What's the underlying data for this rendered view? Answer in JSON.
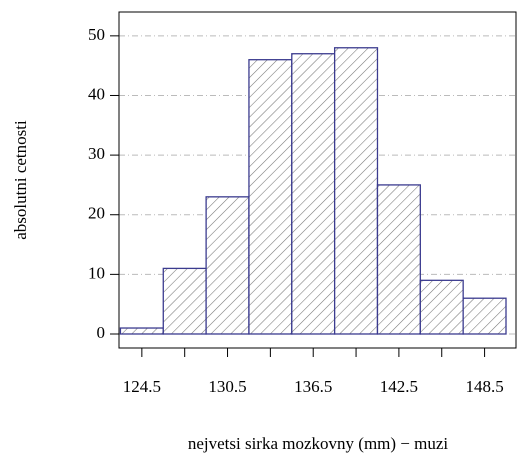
{
  "chart_data": {
    "type": "histogram",
    "xlabel": "nejvetsi sirka mozkovny (mm) − muzi",
    "ylabel": "absolutni cetnosti",
    "bins": [
      123,
      126,
      129,
      132,
      135,
      138,
      141,
      144,
      147,
      150
    ],
    "counts": [
      1,
      11,
      23,
      46,
      47,
      48,
      25,
      9,
      6
    ],
    "color": "#3b3b8f",
    "hatch": true,
    "xlim": [
      122.9,
      150.7
    ],
    "ylim": [
      -2.35,
      54
    ],
    "xticks": [
      124.5,
      130.5,
      136.5,
      142.5,
      148.5
    ],
    "x_minor_ticks": [
      127.5,
      133.5,
      139.5,
      145.5
    ],
    "yticks": [
      0,
      10,
      20,
      30,
      40,
      50
    ],
    "grid": true
  }
}
